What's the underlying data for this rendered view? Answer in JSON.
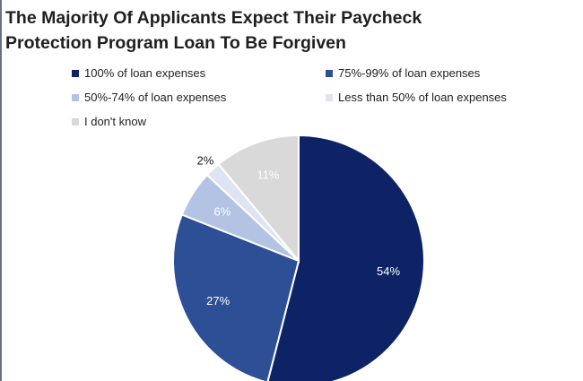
{
  "chart_data": {
    "type": "pie",
    "title_line1": "The Majority Of Applicants Expect Their Paycheck",
    "title_line2": "Protection Program Loan To Be Forgiven",
    "legend_placement": "top",
    "slices": [
      {
        "label": "100% of loan expenses",
        "value": 54,
        "display": "54%",
        "color": "#0d2366",
        "text_color": "#ffffff"
      },
      {
        "label": "75%-99% of loan expenses",
        "value": 27,
        "display": "27%",
        "color": "#2d4f95",
        "text_color": "#ffffff"
      },
      {
        "label": "50%-74% of loan expenses",
        "value": 6,
        "display": "6%",
        "color": "#b3c3e3",
        "text_color": "#ffffff"
      },
      {
        "label": "Less than 50% of loan expenses",
        "value": 2,
        "display": "2%",
        "color": "#dde5f3",
        "text_color": "#1a1a1a"
      },
      {
        "label": "I don't know",
        "value": 11,
        "display": "11%",
        "color": "#d9d9d9",
        "text_color": "#ffffff"
      }
    ]
  }
}
